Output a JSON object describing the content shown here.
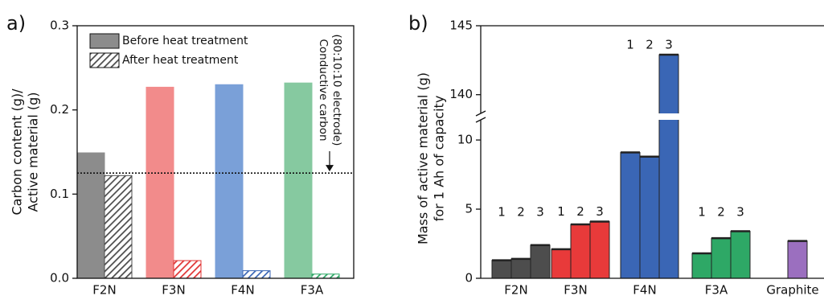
{
  "chart_data": [
    {
      "type": "grouped_bar",
      "panel_label": "a)",
      "y_label": [
        "Carbon content (g)/",
        "Active material (g)"
      ],
      "categories": [
        "F2N",
        "F3N",
        "F4N",
        "F3A"
      ],
      "series": [
        {
          "name": "Before heat treatment",
          "color": "#8c8c8c",
          "bar_colors": [
            "#8c8c8c",
            "#f28b8b",
            "#7aa0d8",
            "#86c9a0"
          ],
          "hatch": false,
          "values": [
            0.149,
            0.227,
            0.23,
            0.232
          ]
        },
        {
          "name": "After heat treatment",
          "color": "#4d4d4d",
          "bar_colors": [
            "#4d4d4d",
            "#e03434",
            "#3a66b5",
            "#2ea866"
          ],
          "hatch": true,
          "values": [
            0.122,
            0.021,
            0.009,
            0.005
          ]
        }
      ],
      "reference_line": {
        "value": 0.125,
        "label": [
          "Conductive carbon",
          "(80:10:10 electrode)"
        ]
      },
      "ylim": [
        0,
        0.3
      ],
      "yticks": [
        {
          "value": 0,
          "label": "0.0"
        },
        0.1,
        0.2,
        0.3
      ],
      "legend": "top-left"
    },
    {
      "type": "broken_bar",
      "panel_label": "b)",
      "y_label": [
        "Mass of active material (g)",
        "for 1 Ah of capacity"
      ],
      "groups": [
        {
          "category": "F2N",
          "color": "#4d4d4d",
          "bar_labels": [
            "1",
            "2",
            "3"
          ],
          "values": [
            1.3,
            1.4,
            2.4
          ]
        },
        {
          "category": "F3N",
          "color": "#e83a3a",
          "bar_labels": [
            "1",
            "2",
            "3"
          ],
          "values": [
            2.1,
            3.9,
            4.1
          ]
        },
        {
          "category": "F4N",
          "color": "#3a66b5",
          "bar_labels": [
            "1",
            "2",
            "3"
          ],
          "values": [
            9.1,
            8.8,
            142.9
          ]
        },
        {
          "category": "F3A",
          "color": "#2ea866",
          "bar_labels": [
            "1",
            "2",
            "3"
          ],
          "values": [
            1.8,
            2.9,
            3.4
          ]
        },
        {
          "category": "Graphite",
          "color": "#9b6fbf",
          "values": [
            2.7
          ]
        }
      ],
      "ylim": [
        0,
        145
      ],
      "y_break": [
        11.4,
        138.7
      ],
      "yticks": [
        0,
        5,
        10,
        140,
        145
      ]
    }
  ]
}
